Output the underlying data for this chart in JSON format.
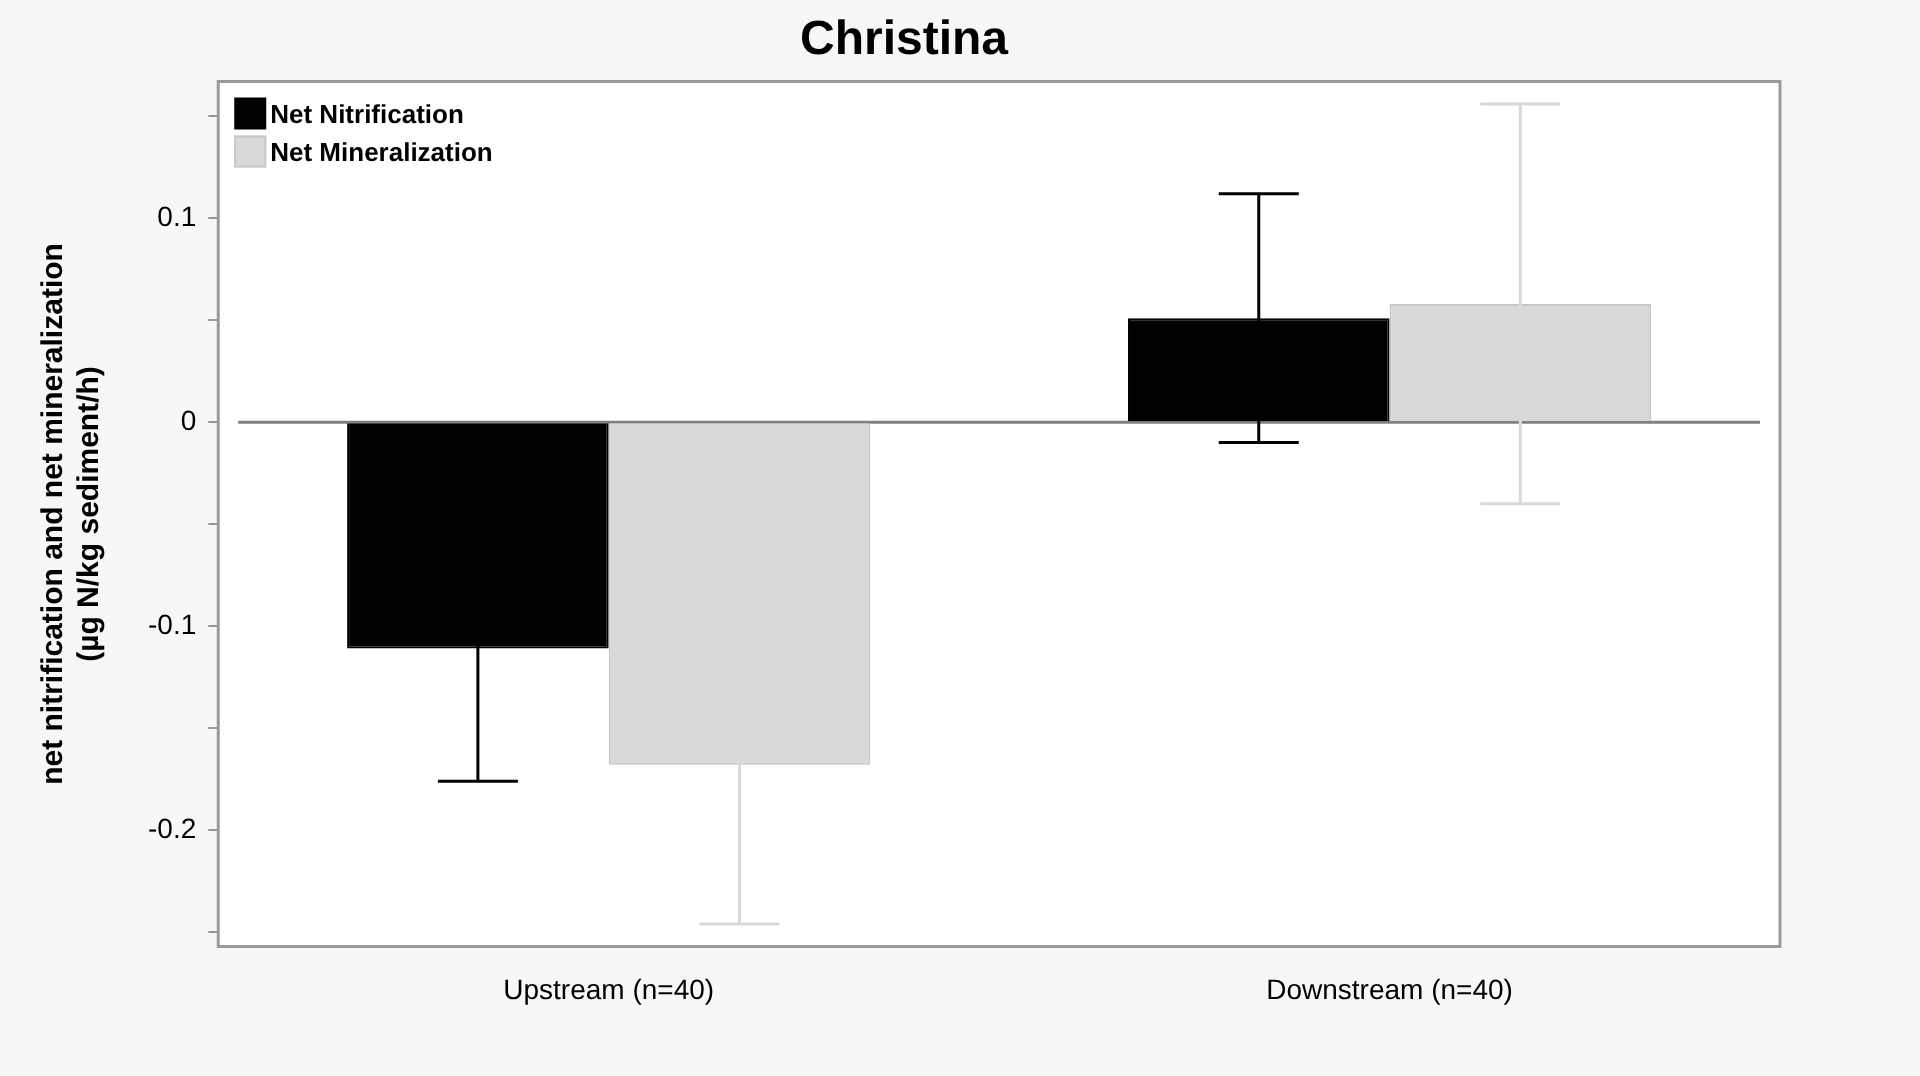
{
  "chart_data": {
    "type": "bar",
    "title": "Christina",
    "ylabel": "net nitrification and net mineralization\n(µg N/kg sediment/h)",
    "categories": [
      "Upstream (n=40)",
      "Downstream (n=40)"
    ],
    "series": [
      {
        "name": "Net Nitrification",
        "color": "#000000",
        "values": [
          -0.111,
          0.051
        ],
        "errors": [
          0.065,
          0.061
        ]
      },
      {
        "name": "Net Mineralization",
        "color": "#d9d9d9",
        "values": [
          -0.168,
          0.058
        ],
        "errors": [
          0.078,
          0.098
        ]
      }
    ],
    "ylim": [
      -0.257,
      0.167
    ],
    "yticks": [
      {
        "value": -0.25,
        "label": null
      },
      {
        "value": -0.2,
        "label": "-0.2"
      },
      {
        "value": -0.15,
        "label": null
      },
      {
        "value": -0.1,
        "label": "-0.1"
      },
      {
        "value": -0.05,
        "label": null
      },
      0,
      {
        "value": 0.05,
        "label": null
      },
      0.1,
      {
        "value": 0.15,
        "label": null
      }
    ],
    "ref_lines": [
      {
        "axis": "y",
        "value": 0,
        "color": "#808080"
      }
    ],
    "grid": false,
    "legend": "top left"
  }
}
